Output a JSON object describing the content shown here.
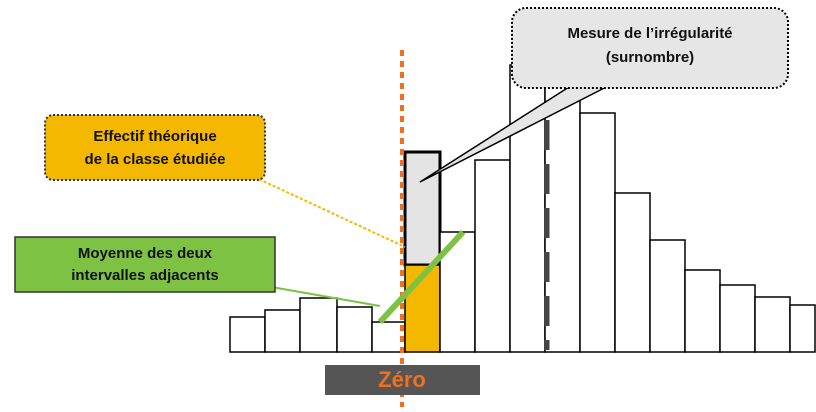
{
  "callouts": {
    "irregularity": {
      "line1": "Mesure de l’irrégularité",
      "line2": "(surnombre)"
    },
    "theoretical": {
      "line1": "Effectif théorique",
      "line2": "de la classe étudiée"
    },
    "average": {
      "line1": "Moyenne des deux",
      "line2": "intervalles adjacents"
    }
  },
  "zero_label": "Zéro"
}
